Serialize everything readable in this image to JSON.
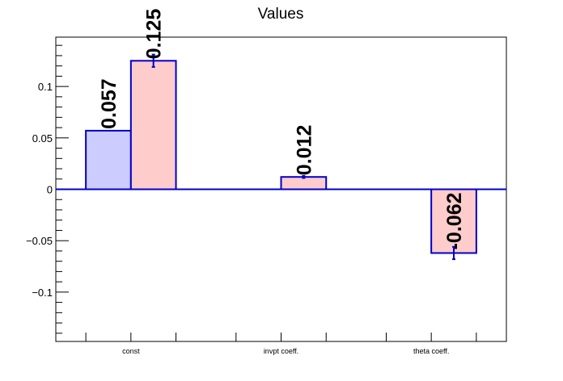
{
  "chart_data": {
    "type": "bar",
    "title": "Values",
    "xlabel": "",
    "ylabel": "",
    "categories": [
      "const",
      "invpt coeff.",
      "theta coeff."
    ],
    "ylim": [
      -0.148,
      0.148
    ],
    "yticks": [
      {
        "value": -0.1,
        "label": "−0.1"
      },
      {
        "value": -0.05,
        "label": "−0.05"
      },
      {
        "value": 0,
        "label": "0"
      },
      {
        "value": 0.05,
        "label": "0.05"
      },
      {
        "value": 0.1,
        "label": "0.1"
      }
    ],
    "grid": false,
    "legend": "none",
    "series": [
      {
        "values": [
          0.057,
          null,
          null
        ],
        "labels": [
          "0.057",
          "",
          ""
        ],
        "errors": [
          0,
          0,
          0
        ],
        "fill": "#ccccff"
      },
      {
        "values": [
          0.125,
          0.012,
          -0.062
        ],
        "labels": [
          "0.125",
          "0.012",
          "-0.062"
        ],
        "errors": [
          0.006,
          0.001,
          0.006
        ],
        "fill": "#ffcccc"
      }
    ],
    "edge_color": "#0000cc"
  }
}
